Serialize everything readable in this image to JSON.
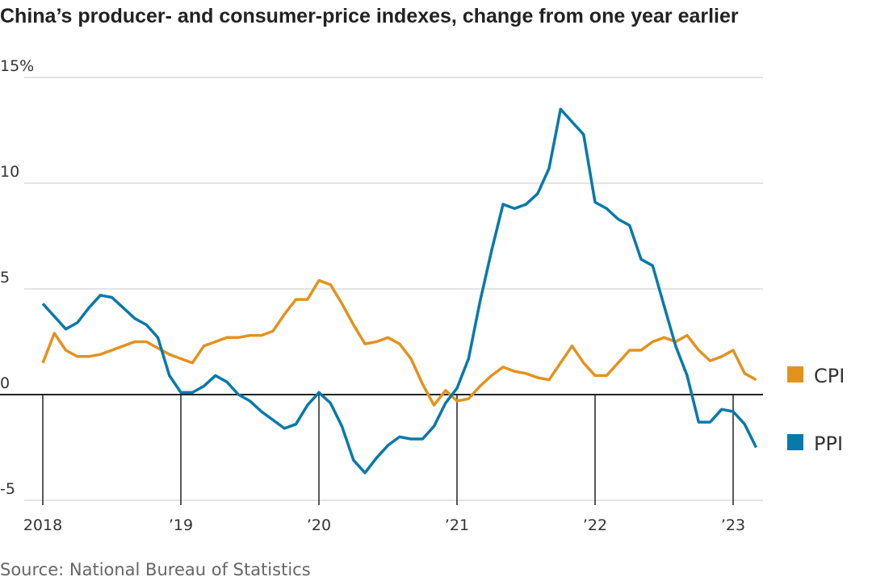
{
  "chart_data": {
    "type": "line",
    "title": "China’s producer- and consumer-price indexes, change from one year earlier",
    "source": "Source: National Bureau of Statistics",
    "x_start": "2018-01",
    "x_frequency": "monthly",
    "x_ticks": [
      {
        "label": "2018",
        "year": 2018
      },
      {
        "label": "’19",
        "year": 2019
      },
      {
        "label": "’20",
        "year": 2020
      },
      {
        "label": "’21",
        "year": 2021
      },
      {
        "label": "’22",
        "year": 2022
      },
      {
        "label": "’23",
        "year": 2023
      }
    ],
    "y_ticks": [
      {
        "label": "15%",
        "value": 15
      },
      {
        "label": "10",
        "value": 10
      },
      {
        "label": "5",
        "value": 5
      },
      {
        "label": "0",
        "value": 0
      },
      {
        "label": "-5",
        "value": -5
      }
    ],
    "ylim": [
      -5,
      15
    ],
    "grid": true,
    "legend_placement": "right",
    "series": [
      {
        "name": "CPI",
        "color": "#e3921e",
        "values": [
          1.5,
          2.9,
          2.1,
          1.8,
          1.8,
          1.9,
          2.1,
          2.3,
          2.5,
          2.5,
          2.2,
          1.9,
          1.7,
          1.5,
          2.3,
          2.5,
          2.7,
          2.7,
          2.8,
          2.8,
          3.0,
          3.8,
          4.5,
          4.5,
          5.4,
          5.2,
          4.3,
          3.3,
          2.4,
          2.5,
          2.7,
          2.4,
          1.7,
          0.5,
          -0.5,
          0.2,
          -0.3,
          -0.2,
          0.4,
          0.9,
          1.3,
          1.1,
          1.0,
          0.8,
          0.7,
          1.5,
          2.3,
          1.5,
          0.9,
          0.9,
          1.5,
          2.1,
          2.1,
          2.5,
          2.7,
          2.5,
          2.8,
          2.1,
          1.6,
          1.8,
          2.1,
          1.0,
          0.7
        ]
      },
      {
        "name": "PPI",
        "color": "#0779ab",
        "values": [
          4.3,
          3.7,
          3.1,
          3.4,
          4.1,
          4.7,
          4.6,
          4.1,
          3.6,
          3.3,
          2.7,
          0.9,
          0.1,
          0.1,
          0.4,
          0.9,
          0.6,
          0.0,
          -0.3,
          -0.8,
          -1.2,
          -1.6,
          -1.4,
          -0.5,
          0.1,
          -0.4,
          -1.5,
          -3.1,
          -3.7,
          -3.0,
          -2.4,
          -2.0,
          -2.1,
          -2.1,
          -1.5,
          -0.4,
          0.3,
          1.7,
          4.4,
          6.8,
          9.0,
          8.8,
          9.0,
          9.5,
          10.7,
          13.5,
          12.9,
          12.3,
          9.1,
          8.8,
          8.3,
          8.0,
          6.4,
          6.1,
          4.2,
          2.3,
          0.9,
          -1.3,
          -1.3,
          -0.7,
          -0.8,
          -1.4,
          -2.5
        ]
      }
    ]
  }
}
